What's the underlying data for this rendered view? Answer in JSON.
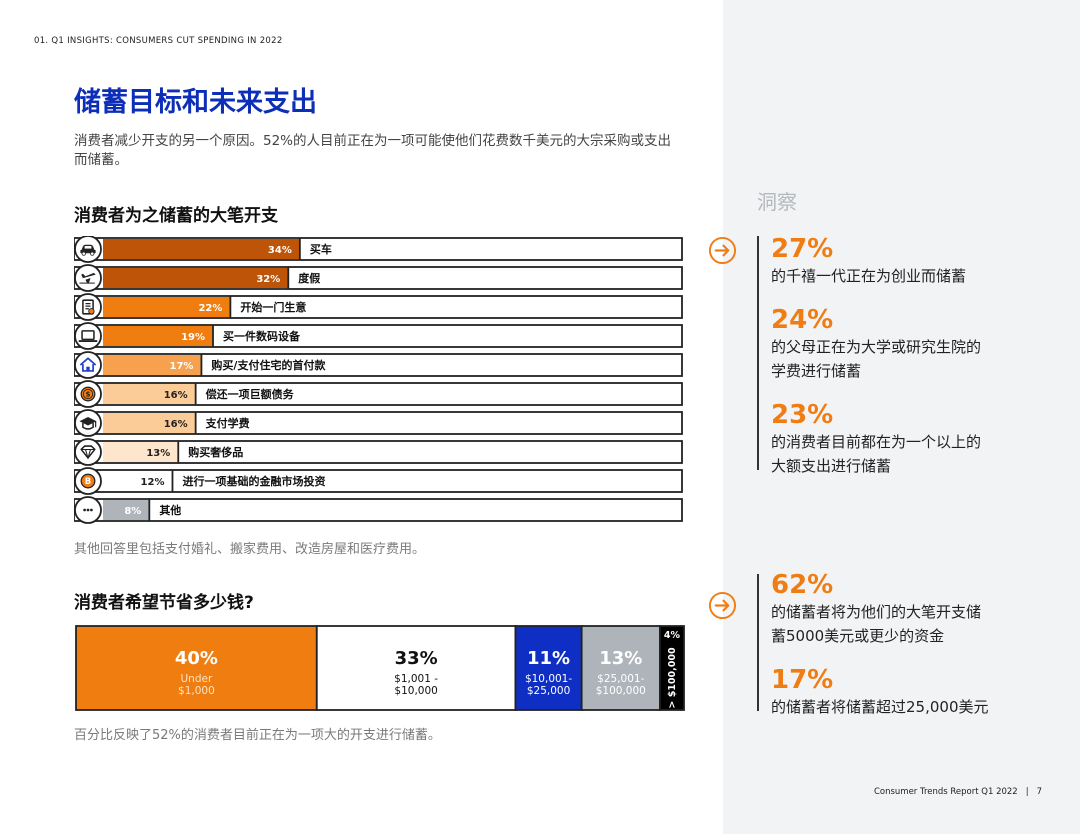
{
  "header": {
    "breadcrumb": "01. Q1 INSIGHTS: CONSUMERS CUT SPENDING IN 2022",
    "title": "储蓄目标和未来支出",
    "intro": "消费者减少开支的另一个原因。52%的人目前正在为一项可能使他们花费数千美元的大宗采购或支出而储蓄。"
  },
  "section1": {
    "title": "消费者为之储蓄的大笔开支",
    "note": "其他回答里包括支付婚礼、搬家费用、改造房屋和医疗费用。"
  },
  "section2": {
    "title": "消费者希望节省多少钱?",
    "note": "百分比反映了52%的消费者目前正在为一项大的开支进行储蓄。"
  },
  "chart_data": [
    {
      "type": "bar",
      "orientation": "horizontal",
      "title": "消费者为之储蓄的大笔开支",
      "categories": [
        "买车",
        "度假",
        "开始一门生意",
        "买一件数码设备",
        "购买/支付住宅的首付款",
        "偿还一项巨额债务",
        "支付学费",
        "购买奢侈品",
        "进行一项基础的金融市场投资",
        "其他"
      ],
      "values": [
        34,
        32,
        22,
        19,
        17,
        16,
        16,
        13,
        12,
        8
      ],
      "value_labels": [
        "34%",
        "32%",
        "22%",
        "19%",
        "17%",
        "16%",
        "16%",
        "13%",
        "12%",
        "8%"
      ],
      "icons": [
        "car-icon",
        "airplane-icon",
        "store-receipt-icon",
        "laptop-icon",
        "house-icon",
        "coin-icon",
        "graduation-cap-icon",
        "diamond-icon",
        "bitcoin-icon",
        "more-icon"
      ],
      "bar_colors": [
        "#bd5408",
        "#bd5408",
        "#ef7d10",
        "#ef7d10",
        "#f7a04e",
        "#fbcc98",
        "#fbcc98",
        "#fde6cb",
        "#ffffff",
        "#aeb4ba"
      ],
      "xlim": [
        0,
        100
      ]
    },
    {
      "type": "bar",
      "orientation": "stacked-horizontal",
      "title": "消费者希望节省多少钱?",
      "segments": [
        {
          "pct": "40%",
          "value": 40,
          "label_lines": [
            "Under",
            "$1,000"
          ],
          "color": "#ef7d10",
          "text_color": "#ffffff",
          "sub_color": "#fde3c4"
        },
        {
          "pct": "33%",
          "value": 33,
          "label_lines": [
            "$1,001 -",
            "$10,000"
          ],
          "color": "#ffffff",
          "text_color": "#111111",
          "sub_color": "#111111"
        },
        {
          "pct": "11%",
          "value": 11,
          "label_lines": [
            "$10,001-",
            "$25,000"
          ],
          "color": "#0f2fc4",
          "text_color": "#ffffff",
          "sub_color": "#ffffff"
        },
        {
          "pct": "13%",
          "value": 13,
          "label_lines": [
            "$25,001-",
            "$100,000"
          ],
          "color": "#aeb4ba",
          "text_color": "#ffffff",
          "sub_color": "#ffffff"
        },
        {
          "pct": "4%",
          "value": 4,
          "label_lines": [
            "> $100,000"
          ],
          "color": "#000000",
          "text_color": "#ffffff",
          "sub_color": "#ffffff"
        }
      ]
    }
  ],
  "insights": {
    "heading": "洞察",
    "arrow_icon": "arrow-right-icon",
    "accent": "#f07d14",
    "stats": [
      {
        "pct": "27%",
        "desc": [
          "的千禧一代正在为创业而储蓄"
        ]
      },
      {
        "pct": "24%",
        "desc": [
          "的父母正在为大学或研究生院的",
          "学费进行储蓄"
        ]
      },
      {
        "pct": "23%",
        "desc": [
          "的消费者目前都在为一个以上的",
          "大额支出进行储蓄"
        ]
      },
      {
        "pct": "62%",
        "desc": [
          "的储蓄者将为他们的大笔开支储",
          "蓄5000美元或更少的资金"
        ]
      },
      {
        "pct": "17%",
        "desc": [
          "的储蓄者将储蓄超过25,000美元"
        ]
      }
    ]
  },
  "footer": {
    "report": "Consumer Trends Report Q1 2022",
    "separator": "|",
    "page": "7"
  }
}
